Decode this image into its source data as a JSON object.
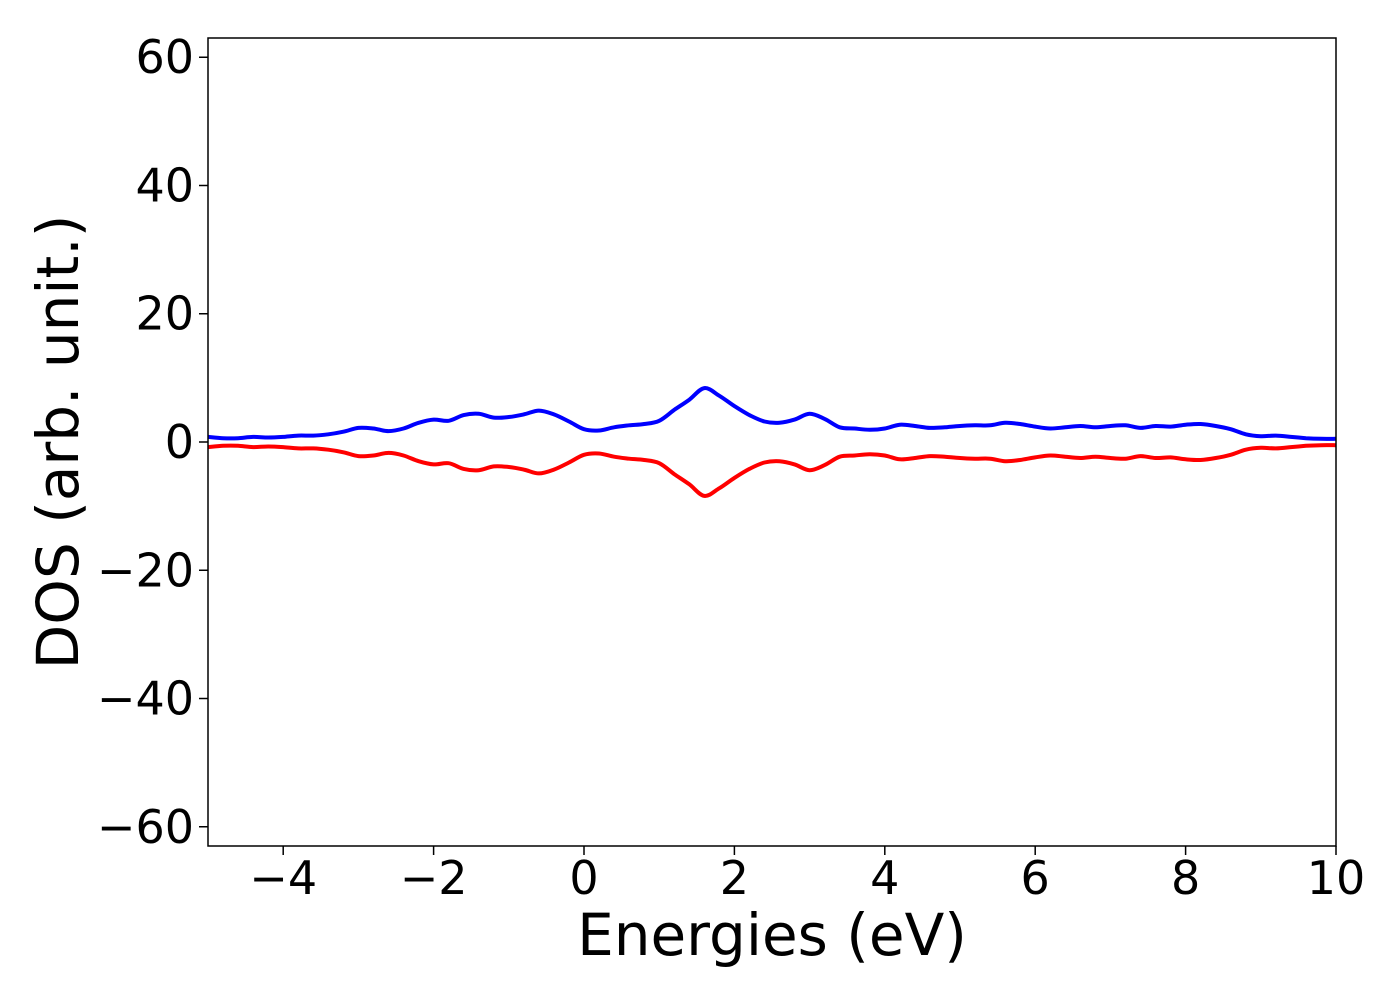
{
  "chart_data": {
    "type": "line",
    "title": "",
    "xlabel": "Energies (eV)",
    "ylabel": "DOS (arb. unit.)",
    "xlim": [
      -5,
      10
    ],
    "ylim": [
      -63,
      63
    ],
    "xticks": [
      -4,
      -2,
      0,
      2,
      4,
      6,
      8,
      10
    ],
    "yticks": [
      -60,
      -40,
      -20,
      0,
      20,
      40,
      60
    ],
    "xtick_labels": [
      "−4",
      "−2",
      "0",
      "2",
      "4",
      "6",
      "8",
      "10"
    ],
    "ytick_labels": [
      "−60",
      "−40",
      "−20",
      "0",
      "20",
      "40",
      "60"
    ],
    "grid": false,
    "legend": "none",
    "series": [
      {
        "color": "#0000ff",
        "x": [
          -5.0,
          -4.8,
          -4.6,
          -4.4,
          -4.2,
          -4.0,
          -3.8,
          -3.6,
          -3.4,
          -3.2,
          -3.0,
          -2.8,
          -2.6,
          -2.4,
          -2.2,
          -2.0,
          -1.8,
          -1.6,
          -1.4,
          -1.2,
          -1.0,
          -0.8,
          -0.6,
          -0.4,
          -0.2,
          0.0,
          0.2,
          0.4,
          0.6,
          0.8,
          1.0,
          1.2,
          1.4,
          1.6,
          1.8,
          2.0,
          2.2,
          2.4,
          2.6,
          2.8,
          3.0,
          3.2,
          3.4,
          3.6,
          3.8,
          4.0,
          4.2,
          4.4,
          4.6,
          4.8,
          5.0,
          5.2,
          5.4,
          5.6,
          5.8,
          6.0,
          6.2,
          6.4,
          6.6,
          6.8,
          7.0,
          7.2,
          7.4,
          7.6,
          7.8,
          8.0,
          8.2,
          8.4,
          8.6,
          8.8,
          9.0,
          9.2,
          9.4,
          9.6,
          9.8,
          10.0
        ],
        "y": [
          0.8,
          0.6,
          0.6,
          0.8,
          0.7,
          0.8,
          1.0,
          1.0,
          1.2,
          1.6,
          2.2,
          2.1,
          1.7,
          2.1,
          3.0,
          3.5,
          3.3,
          4.2,
          4.4,
          3.8,
          3.9,
          4.3,
          4.9,
          4.3,
          3.2,
          2.0,
          1.8,
          2.3,
          2.6,
          2.8,
          3.3,
          5.0,
          6.6,
          8.4,
          7.2,
          5.6,
          4.2,
          3.2,
          3.0,
          3.5,
          4.4,
          3.6,
          2.3,
          2.1,
          1.9,
          2.1,
          2.7,
          2.5,
          2.2,
          2.3,
          2.5,
          2.6,
          2.6,
          3.0,
          2.8,
          2.4,
          2.1,
          2.3,
          2.5,
          2.3,
          2.5,
          2.6,
          2.2,
          2.5,
          2.4,
          2.7,
          2.8,
          2.5,
          2.0,
          1.2,
          0.9,
          1.0,
          0.8,
          0.6,
          0.5,
          0.5
        ]
      },
      {
        "color": "#ff0000",
        "x": [
          -5.0,
          -4.8,
          -4.6,
          -4.4,
          -4.2,
          -4.0,
          -3.8,
          -3.6,
          -3.4,
          -3.2,
          -3.0,
          -2.8,
          -2.6,
          -2.4,
          -2.2,
          -2.0,
          -1.8,
          -1.6,
          -1.4,
          -1.2,
          -1.0,
          -0.8,
          -0.6,
          -0.4,
          -0.2,
          0.0,
          0.2,
          0.4,
          0.6,
          0.8,
          1.0,
          1.2,
          1.4,
          1.6,
          1.8,
          2.0,
          2.2,
          2.4,
          2.6,
          2.8,
          3.0,
          3.2,
          3.4,
          3.6,
          3.8,
          4.0,
          4.2,
          4.4,
          4.6,
          4.8,
          5.0,
          5.2,
          5.4,
          5.6,
          5.8,
          6.0,
          6.2,
          6.4,
          6.6,
          6.8,
          7.0,
          7.2,
          7.4,
          7.6,
          7.8,
          8.0,
          8.2,
          8.4,
          8.6,
          8.8,
          9.0,
          9.2,
          9.4,
          9.6,
          9.8,
          10.0
        ],
        "y": [
          -0.8,
          -0.6,
          -0.6,
          -0.8,
          -0.7,
          -0.8,
          -1.0,
          -1.0,
          -1.2,
          -1.6,
          -2.2,
          -2.1,
          -1.7,
          -2.1,
          -3.0,
          -3.5,
          -3.3,
          -4.2,
          -4.4,
          -3.8,
          -3.9,
          -4.3,
          -4.9,
          -4.3,
          -3.2,
          -2.0,
          -1.8,
          -2.3,
          -2.6,
          -2.8,
          -3.3,
          -5.0,
          -6.6,
          -8.4,
          -7.2,
          -5.6,
          -4.2,
          -3.2,
          -3.0,
          -3.5,
          -4.4,
          -3.6,
          -2.3,
          -2.1,
          -1.9,
          -2.1,
          -2.7,
          -2.5,
          -2.2,
          -2.3,
          -2.5,
          -2.6,
          -2.6,
          -3.0,
          -2.8,
          -2.4,
          -2.1,
          -2.3,
          -2.5,
          -2.3,
          -2.5,
          -2.6,
          -2.2,
          -2.5,
          -2.4,
          -2.7,
          -2.8,
          -2.5,
          -2.0,
          -1.2,
          -0.9,
          -1.0,
          -0.8,
          -0.6,
          -0.5,
          -0.5
        ]
      }
    ]
  }
}
